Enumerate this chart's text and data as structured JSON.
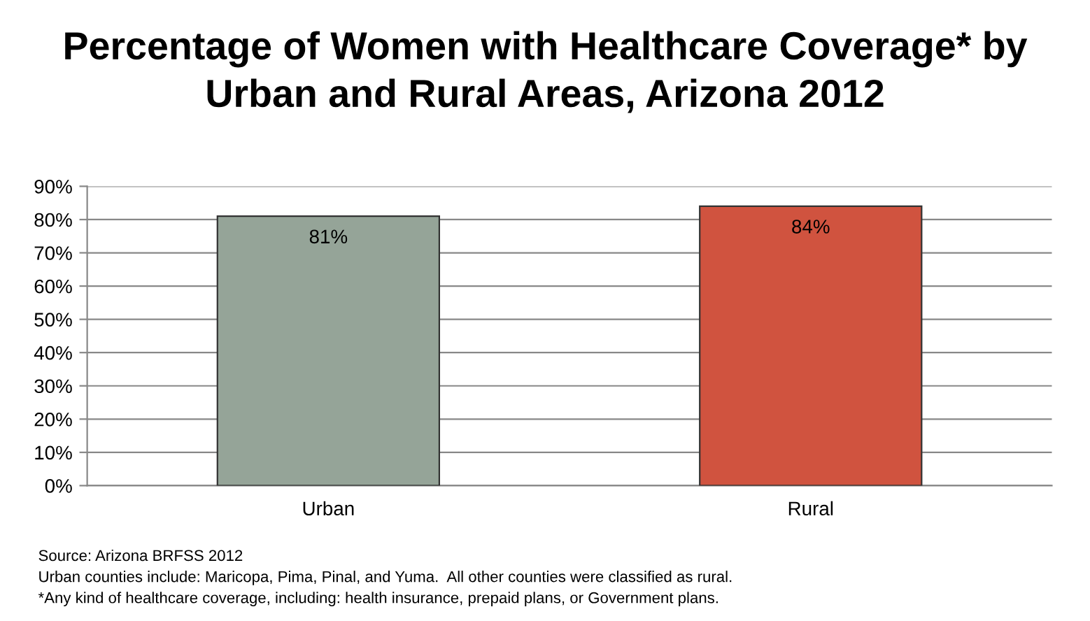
{
  "chart_data": {
    "type": "bar",
    "title": "Percentage of Women with Healthcare Coverage* by\nUrban and Rural Areas, Arizona 2012",
    "categories": [
      "Urban",
      "Rural"
    ],
    "values": [
      81,
      84
    ],
    "colors": [
      "#95a498",
      "#d0533f"
    ],
    "value_labels": [
      "81%",
      "84%"
    ],
    "ylim": [
      0,
      90
    ],
    "yticks": [
      {
        "value": 0,
        "label": "0%"
      },
      {
        "value": 10,
        "label": "10%"
      },
      {
        "value": 20,
        "label": "20%"
      },
      {
        "value": 30,
        "label": "30%"
      },
      {
        "value": 40,
        "label": "40%"
      },
      {
        "value": 50,
        "label": "50%"
      },
      {
        "value": 60,
        "label": "60%"
      },
      {
        "value": 70,
        "label": "70%"
      },
      {
        "value": 80,
        "label": "80%"
      },
      {
        "value": 90,
        "label": "90%"
      }
    ],
    "grid": "y",
    "annotations": [
      "Source: Arizona BRFSS 2012",
      "Urban counties include: Maricopa, Pima, Pinal, and Yuma.  All other counties were classified as rural.",
      "*Any kind of healthcare coverage, including: health insurance, prepaid plans, or Government plans."
    ]
  }
}
